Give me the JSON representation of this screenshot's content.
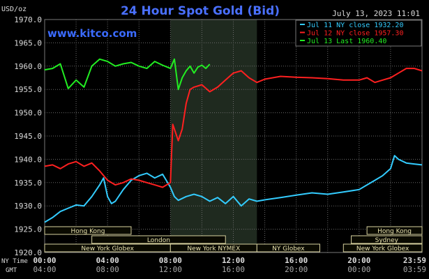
{
  "chart_data": {
    "type": "line",
    "title": "24 Hour Spot Gold (Bid)",
    "timestamp": "July 13, 2023 11:01",
    "watermark": "www.kitco.com",
    "y_unit_label": "USD/oz",
    "ylim": [
      1920,
      1970
    ],
    "yticks": [
      "1970.0",
      "1965.0",
      "1960.0",
      "1955.0",
      "1950.0",
      "1945.0",
      "1940.0",
      "1935.0",
      "1930.0",
      "1925.0",
      "1920.0"
    ],
    "xlim": [
      0,
      24
    ],
    "x_row_labels": [
      "NY Time",
      "GMT"
    ],
    "xticks_ny": [
      "00:00",
      "04:00",
      "08:00",
      "12:00",
      "16:00",
      "20:00",
      "23:59"
    ],
    "xticks_gmt": [
      "04:00",
      "08:00",
      "12:00",
      "16:00",
      "20:00",
      "00:00",
      "03:59"
    ],
    "legend": [
      {
        "label": "Jul 11 NY close 1932.20",
        "color": "#33ccff"
      },
      {
        "label": "Jul 12 NY close 1957.30",
        "color": "#ff2020"
      },
      {
        "label": "Jul 13 Last 1960.40",
        "color": "#22ee22"
      }
    ],
    "shaded_session": [
      8,
      13.5
    ],
    "markets": [
      {
        "label": "Hong Kong",
        "row": 0,
        "start": 0,
        "end": 5.5
      },
      {
        "label": "Hong Kong",
        "row": 0,
        "start": 20.5,
        "end": 24
      },
      {
        "label": "London",
        "row": 1,
        "start": 3,
        "end": 11.5
      },
      {
        "label": "Sydney",
        "row": 1,
        "start": 19.5,
        "end": 24
      },
      {
        "label": "New York Globex",
        "row": 2,
        "start": 0,
        "end": 8
      },
      {
        "label": "New York NYMEX",
        "row": 2,
        "start": 8,
        "end": 13.5
      },
      {
        "label": "NY Globex",
        "row": 2,
        "start": 13.5,
        "end": 17.5
      },
      {
        "label": "New York Globex",
        "row": 2,
        "start": 19,
        "end": 24
      }
    ],
    "series": [
      {
        "name": "Jul 11",
        "color": "#33ccff",
        "x": [
          0,
          0.5,
          1,
          1.5,
          2,
          2.5,
          3,
          3.5,
          3.75,
          4,
          4.25,
          4.5,
          5,
          5.5,
          6,
          6.5,
          7,
          7.5,
          8,
          8.25,
          8.5,
          9,
          9.5,
          10,
          10.5,
          11,
          11.5,
          12,
          12.5,
          13,
          13.5,
          14,
          15,
          16,
          17,
          18,
          19,
          20,
          20.5,
          21,
          21.5,
          22,
          22.25,
          22.5,
          23,
          23.5,
          24
        ],
        "values": [
          1926.5,
          1927.5,
          1928.8,
          1929.5,
          1930.2,
          1930.0,
          1932.0,
          1934.5,
          1936.0,
          1932.0,
          1930.5,
          1931.0,
          1933.5,
          1935.5,
          1936.5,
          1937.0,
          1936.0,
          1936.8,
          1934.0,
          1932.0,
          1931.2,
          1932.0,
          1932.5,
          1932.0,
          1931.0,
          1931.8,
          1930.5,
          1932.0,
          1930.0,
          1931.5,
          1931.0,
          1931.3,
          1931.8,
          1932.3,
          1932.8,
          1932.5,
          1933.0,
          1933.5,
          1934.5,
          1935.5,
          1936.5,
          1938.0,
          1940.8,
          1940.0,
          1939.2,
          1939.0,
          1938.8
        ]
      },
      {
        "name": "Jul 12",
        "color": "#ff2020",
        "x": [
          0,
          0.5,
          1,
          1.5,
          2,
          2.5,
          3,
          3.5,
          4,
          4.5,
          5,
          5.5,
          6,
          6.5,
          7,
          7.5,
          8,
          8.15,
          8.3,
          8.5,
          8.75,
          9,
          9.25,
          9.5,
          10,
          10.5,
          11,
          11.5,
          12,
          12.5,
          13,
          13.5,
          14,
          15,
          16,
          17,
          18,
          19,
          20,
          20.5,
          21,
          21.5,
          22,
          22.5,
          23,
          23.5,
          24
        ],
        "values": [
          1938.5,
          1938.8,
          1938.0,
          1939.0,
          1939.5,
          1938.5,
          1939.2,
          1937.5,
          1935.5,
          1934.5,
          1935.0,
          1935.8,
          1935.5,
          1935.0,
          1934.5,
          1934.0,
          1935.0,
          1947.5,
          1946.0,
          1944.0,
          1946.5,
          1952.0,
          1955.0,
          1955.5,
          1956.0,
          1954.5,
          1955.5,
          1957.0,
          1958.5,
          1959.0,
          1957.5,
          1956.5,
          1957.2,
          1957.8,
          1957.6,
          1957.5,
          1957.3,
          1957.0,
          1957.0,
          1957.5,
          1956.5,
          1957.0,
          1957.5,
          1958.5,
          1959.5,
          1959.5,
          1959.0
        ]
      },
      {
        "name": "Jul 13",
        "color": "#22ee22",
        "x": [
          0,
          0.5,
          1,
          1.5,
          2,
          2.5,
          3,
          3.5,
          4,
          4.5,
          5,
          5.5,
          6,
          6.5,
          7,
          7.5,
          8,
          8.25,
          8.5,
          8.75,
          9,
          9.25,
          9.5,
          9.75,
          10,
          10.25,
          10.5
        ],
        "values": [
          1959.2,
          1959.5,
          1960.5,
          1955.2,
          1957.0,
          1955.5,
          1960.0,
          1961.5,
          1961.0,
          1960.0,
          1960.5,
          1960.8,
          1960.0,
          1959.5,
          1961.0,
          1960.2,
          1959.5,
          1961.5,
          1955.0,
          1957.5,
          1959.0,
          1960.0,
          1958.5,
          1959.8,
          1960.2,
          1959.5,
          1960.4
        ]
      }
    ]
  }
}
